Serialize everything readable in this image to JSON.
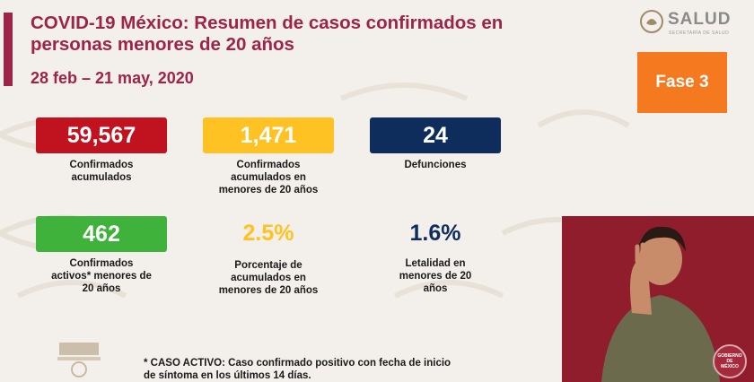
{
  "header": {
    "title": "COVID-19 México: Resumen de casos confirmados en personas menores de 20 años",
    "date_range": "28 feb – 21 may, 2020"
  },
  "logo": {
    "text": "SALUD",
    "subtitle": "SECRETARÍA DE SALUD"
  },
  "phase": {
    "label": "Fase 3"
  },
  "stats": [
    {
      "value": "59,567",
      "label": "Confirmados\nacumulados",
      "color": "#c1121f"
    },
    {
      "value": "1,471",
      "label": "Confirmados\nacumulados en\nmenores de 20 años",
      "color": "#ffc222"
    },
    {
      "value": "24",
      "label": "Defunciones",
      "color": "#0f2d5c"
    },
    {
      "value": "462",
      "label": "Confirmados\nactivos* menores de\n20 años",
      "color": "#3fb23b"
    },
    {
      "value": "2.5%",
      "label": "Porcentaje de\nacumulados en\nmenores de 20 años",
      "color": "#ffc222"
    },
    {
      "value": "1.6%",
      "label": "Letalidad en\nmenores de 20\naños",
      "color": "#0f2d5c"
    }
  ],
  "footnote": "* CASO ACTIVO: Caso confirmado positivo con fecha de inicio\nde síntoma en los últimos 14 días.",
  "gob_logo": "GOBIERNO DE\nMÉXICO",
  "colors": {
    "accent": "#9d2449",
    "phase": "#f57a1f",
    "background": "#f3efea"
  }
}
